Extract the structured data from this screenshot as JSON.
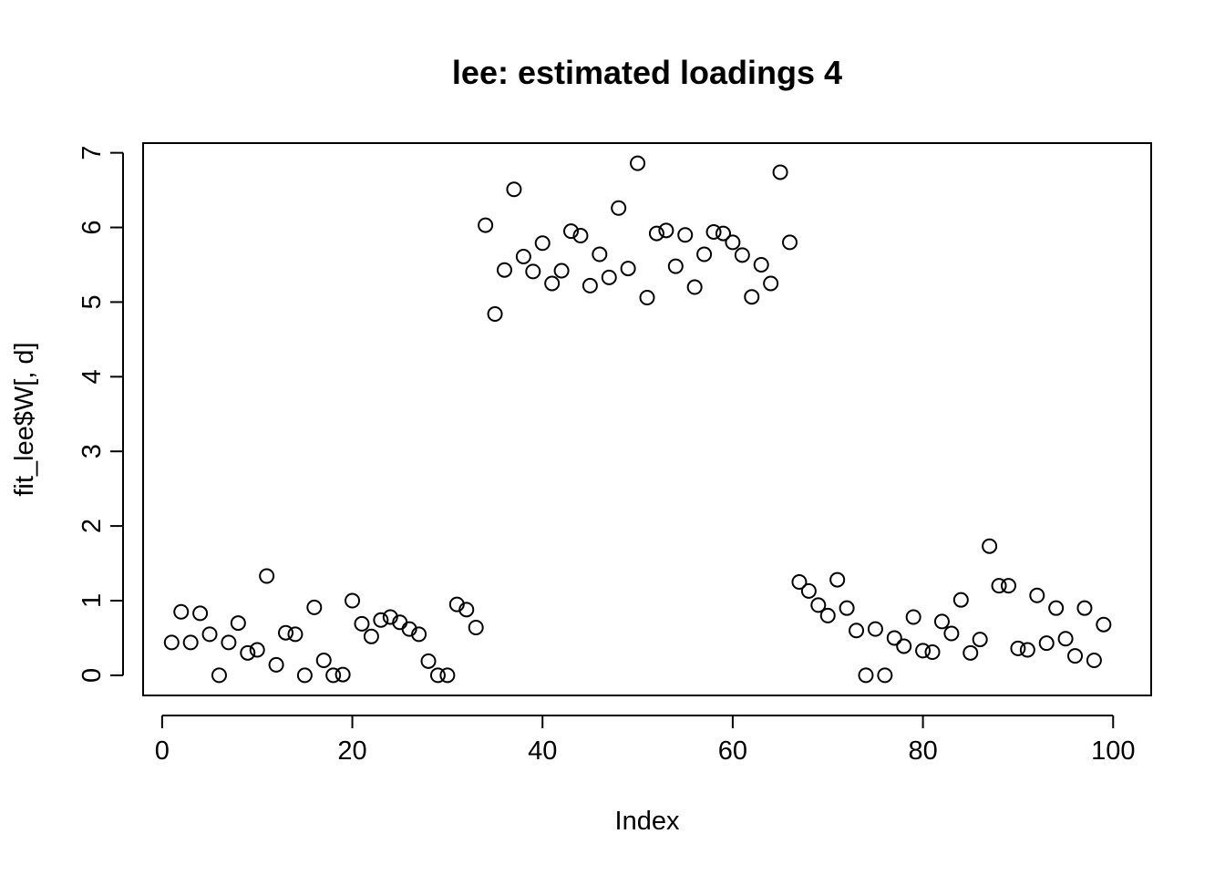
{
  "chart_data": {
    "type": "scatter",
    "title": "lee: estimated loadings 4",
    "xlabel": "Index",
    "ylabel": "fit_lee$W[, d]",
    "xlim": [
      -2,
      104
    ],
    "ylim": [
      -0.27,
      7.13
    ],
    "x_ticks": [
      0,
      20,
      40,
      60,
      80,
      100
    ],
    "y_ticks": [
      0,
      1,
      2,
      3,
      4,
      5,
      6,
      7
    ],
    "x_tick_labels": [
      "0",
      "20",
      "40",
      "60",
      "80",
      "100"
    ],
    "y_tick_labels": [
      "0",
      "1",
      "2",
      "3",
      "4",
      "5",
      "6",
      "7"
    ],
    "grid": false,
    "marker": "open-circle",
    "series": [
      {
        "x": [
          1,
          2,
          3,
          4,
          5,
          6,
          7,
          8,
          9,
          10,
          11,
          12,
          13,
          14,
          15,
          16,
          17,
          18,
          19,
          20,
          21,
          22,
          23,
          24,
          25,
          26,
          27,
          28,
          29,
          30,
          31,
          32,
          33,
          34,
          35,
          36,
          37,
          38,
          39,
          40,
          41,
          42,
          43,
          44,
          45,
          46,
          47,
          48,
          49,
          50,
          51,
          52,
          53,
          54,
          55,
          56,
          57,
          58,
          59,
          60,
          61,
          62,
          63,
          64,
          65,
          66,
          67,
          68,
          69,
          70,
          71,
          72,
          73,
          74,
          75,
          76,
          77,
          78,
          79,
          80,
          81,
          82,
          83,
          84,
          85,
          86,
          87,
          88,
          89,
          90,
          91,
          92,
          93,
          94,
          95,
          96,
          97,
          98,
          99
        ],
        "y": [
          0.44,
          0.85,
          0.44,
          0.83,
          0.55,
          0.0,
          0.44,
          0.7,
          0.3,
          0.34,
          1.33,
          0.14,
          0.57,
          0.55,
          0.0,
          0.91,
          0.2,
          0.0,
          0.01,
          1.0,
          0.69,
          0.52,
          0.74,
          0.78,
          0.71,
          0.62,
          0.55,
          0.19,
          0.0,
          0.0,
          0.95,
          0.88,
          0.64,
          6.03,
          4.84,
          5.43,
          6.51,
          5.61,
          5.41,
          5.79,
          5.25,
          5.42,
          5.95,
          5.89,
          5.22,
          5.64,
          5.33,
          6.26,
          5.45,
          6.86,
          5.06,
          5.92,
          5.96,
          5.48,
          5.9,
          5.2,
          5.64,
          5.94,
          5.92,
          5.8,
          5.63,
          5.07,
          5.5,
          5.25,
          6.74,
          5.8,
          1.25,
          1.13,
          0.94,
          0.8,
          1.28,
          0.9,
          0.6,
          0.0,
          0.62,
          0.0,
          0.5,
          0.39,
          0.78,
          0.33,
          0.31,
          0.72,
          0.56,
          1.01,
          0.3,
          0.48,
          1.73,
          1.2,
          1.2,
          0.36,
          0.34,
          1.07,
          0.43,
          0.9,
          0.49,
          0.26,
          0.9,
          0.2,
          0.68
        ]
      }
    ]
  }
}
